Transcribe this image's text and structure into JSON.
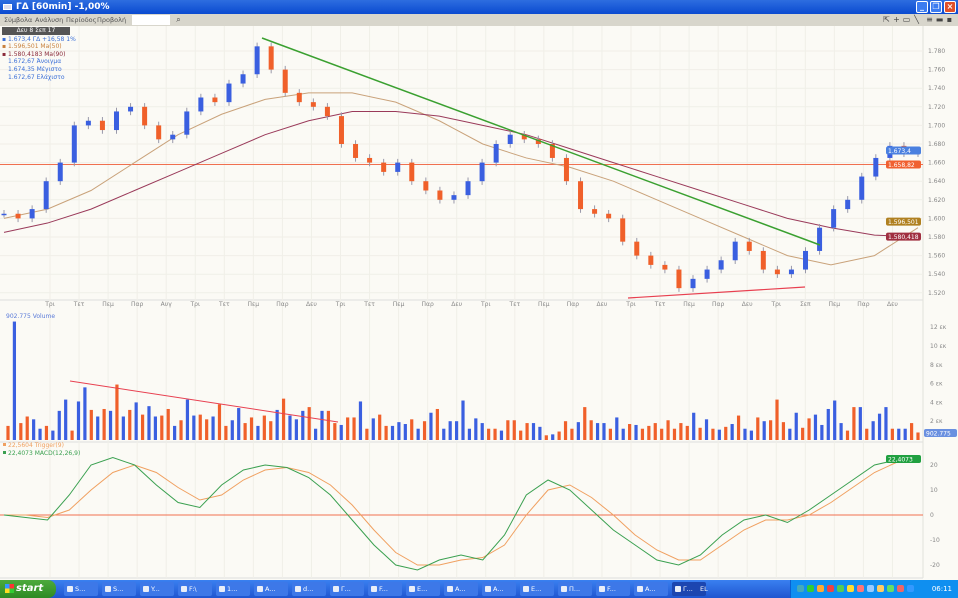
{
  "window": {
    "title": "ΓΔ [60min] -1,00%"
  },
  "menu": {
    "items": [
      "Σύμβολα",
      "Ανάλυση",
      "Περίοδος",
      "Προβολή"
    ],
    "search_value": "",
    "toolbar_icons": [
      "pointer-icon",
      "crosshair-icon",
      "zoom-icon",
      "draw-line-icon",
      "list-icon",
      "layout-icon",
      "save-icon"
    ]
  },
  "legend": {
    "date": "Δευ 8 Σεπ 17",
    "lines": [
      {
        "text": "1.673,4 ΓΔ +16,58 1%",
        "color": "#3a6fd8"
      },
      {
        "text": "1.596,501 Ma(50)",
        "color": "#c8803c"
      },
      {
        "text": "1.580,4183 Ma(90)",
        "color": "#8a2a3a"
      },
      {
        "text": "1.672,67 Άνοιγμα",
        "color": "#3a6fd8"
      },
      {
        "text": "1.674,35 Μέγιστο",
        "color": "#3a6fd8"
      },
      {
        "text": "1.672,67 Ελάχιστο",
        "color": "#3a6fd8"
      }
    ]
  },
  "colors": {
    "up": "#3a5fe0",
    "down": "#f0602a",
    "ma50": "#c9a27a",
    "ma90": "#9a3a5a",
    "trend_green": "#3aa030",
    "trend_red": "#e84050",
    "hline": "#f07050",
    "macd": "#3aa050",
    "trigger": "#f0a060"
  },
  "chart_data": [
    {
      "type": "candlestick",
      "panel": "price",
      "ylim": [
        1.51,
        1.8
      ],
      "yticks": [
        "1.780",
        "1.760",
        "1.740",
        "1.720",
        "1.700",
        "1.680",
        "1.660",
        "1.640",
        "1.620",
        "1.600",
        "1.580",
        "1.560",
        "1.540",
        "1.520"
      ],
      "xticks": [
        "Τρι",
        "Τετ",
        "Πεμ",
        "Παρ",
        "Αυγ",
        "Τρι",
        "Τετ",
        "Πεμ",
        "Παρ",
        "Δευ",
        "Τρι",
        "Τετ",
        "Πεμ",
        "Παρ",
        "Δευ",
        "Τρι",
        "Τετ",
        "Πεμ",
        "Παρ",
        "Δευ",
        "Τρι",
        "Τετ",
        "Πεμ",
        "Παρ",
        "Δευ",
        "Τρι",
        "Σεπ",
        "Πεμ",
        "Παρ",
        "Δευ"
      ],
      "close": [
        1.605,
        1.6,
        1.61,
        1.64,
        1.66,
        1.7,
        1.705,
        1.695,
        1.715,
        1.72,
        1.7,
        1.685,
        1.69,
        1.715,
        1.73,
        1.725,
        1.745,
        1.755,
        1.785,
        1.76,
        1.735,
        1.725,
        1.72,
        1.71,
        1.68,
        1.665,
        1.66,
        1.65,
        1.66,
        1.64,
        1.63,
        1.62,
        1.625,
        1.64,
        1.66,
        1.68,
        1.69,
        1.685,
        1.68,
        1.665,
        1.64,
        1.61,
        1.605,
        1.6,
        1.575,
        1.56,
        1.55,
        1.545,
        1.525,
        1.535,
        1.545,
        1.555,
        1.575,
        1.565,
        1.545,
        1.54,
        1.545,
        1.565,
        1.59,
        1.61,
        1.62,
        1.645,
        1.665,
        1.678,
        1.67,
        1.673
      ],
      "series": [
        {
          "name": "Ma(50)",
          "values": [
            1.6,
            1.61,
            1.63,
            1.66,
            1.69,
            1.712,
            1.728,
            1.735,
            1.735,
            1.725,
            1.705,
            1.68,
            1.665,
            1.655,
            1.64,
            1.62,
            1.6,
            1.58,
            1.56,
            1.55,
            1.56,
            1.59
          ]
        },
        {
          "name": "Ma(90)",
          "values": [
            1.585,
            1.595,
            1.61,
            1.63,
            1.65,
            1.67,
            1.69,
            1.705,
            1.715,
            1.715,
            1.71,
            1.7,
            1.69,
            1.675,
            1.66,
            1.645,
            1.63,
            1.615,
            1.6,
            1.59,
            1.582,
            1.58
          ]
        }
      ],
      "tags": [
        {
          "text": "1.673,4",
          "value": 1.673,
          "color": "#4a80e0"
        },
        {
          "text": "1.658,82",
          "value": 1.658,
          "color": "#f06030"
        },
        {
          "text": "1.596,501",
          "value": 1.5965,
          "color": "#b08020"
        },
        {
          "text": "1.580,418",
          "value": 1.5804,
          "color": "#a03040"
        }
      ],
      "hline": 1.658
    },
    {
      "type": "bar",
      "panel": "volume",
      "title": "902.775 Volume",
      "ylim": [
        0,
        13
      ],
      "yticks": [
        "12 εκ",
        "10 εκ",
        "8 εκ",
        "6 εκ",
        "4 εκ",
        "2 εκ"
      ],
      "tag": "902.775",
      "values": [
        1.5,
        12.6,
        1.8,
        2.5,
        2.2,
        1.2,
        1.5,
        1,
        3.1,
        4.3,
        1,
        4.1,
        5.6,
        3.2,
        2.5,
        3.3,
        3.1,
        5.9,
        2.5,
        3.2,
        4,
        2.7,
        3.6,
        2.5,
        2.6,
        3.3,
        1.5,
        2.1,
        4.3,
        2.6,
        2.7,
        2.2,
        2.5,
        3.8,
        1.5,
        2.1,
        3.4,
        1.8,
        2.4,
        1.5,
        2.6,
        2,
        3.2,
        4.4,
        2.6,
        2.2,
        3.1,
        3.5,
        1.2,
        3.1,
        3.1,
        1.8,
        1.6,
        2.4,
        2.4,
        4.1,
        1.2,
        2.3,
        2.7,
        1.5,
        1.5,
        1.9,
        1.7,
        2.2,
        1.2,
        2,
        2.9,
        3.3,
        1.2,
        2,
        2,
        4.2,
        1.2,
        2.3,
        1.8,
        1.2,
        1.2,
        1,
        2.1,
        2.1,
        1,
        1.8,
        1.8,
        1.4,
        0.5,
        0.6,
        0.9,
        2,
        1.2,
        1.9,
        3.5,
        2.1,
        1.8,
        1.8,
        1.2,
        2.4,
        1.2,
        1.7,
        1.6,
        1.2,
        1.5,
        1.8,
        1.2,
        2.1,
        1.2,
        1.8,
        1.5,
        2.9,
        1.3,
        2.2,
        1.2,
        1.1,
        1.4,
        1.7,
        2.6,
        1.2,
        1,
        2.4,
        2,
        2.1,
        4.3,
        1.9,
        1.2,
        2.9,
        1.3,
        2.3,
        2.7,
        1.6,
        3.3,
        4.2,
        1.8,
        1,
        3.5,
        3.5,
        1.2,
        2,
        2.8,
        3.5,
        1.2,
        1.2,
        1.2,
        1.8,
        0.8
      ],
      "colors": "oboobbobbbobbobobobobobboobobbooboobbooboobobbbobboobooboboobbbobobobbbbbbbooboooobboboooboobbobboboooooooobobobobobbobooobboobbbbboobobbbobboobbbbbo"
    },
    {
      "type": "line",
      "panel": "macd",
      "ylim": [
        -22,
        27
      ],
      "yticks": [
        "20",
        "10",
        "0",
        "-10",
        "-20"
      ],
      "series": [
        {
          "name": "22,5604 Trigger(9)",
          "tag": "",
          "values": [
            0,
            0,
            -1,
            2,
            10,
            17,
            20,
            17,
            11,
            6,
            8,
            14,
            18,
            19,
            17,
            12,
            4,
            -6,
            -15,
            -20,
            -20,
            -18,
            -17,
            -12,
            0,
            10,
            12,
            7,
            0,
            -8,
            -14,
            -18,
            -18,
            -12,
            -6,
            -2,
            -2,
            0,
            5,
            11,
            17,
            21,
            22.6
          ]
        },
        {
          "name": "22,4073 MACD(12,26,9)",
          "tag": "22,4073",
          "values": [
            0,
            -1,
            -2,
            8,
            20,
            23,
            20,
            12,
            5,
            3,
            12,
            18,
            20,
            19,
            15,
            8,
            -2,
            -12,
            -20,
            -22,
            -18,
            -16,
            -18,
            -8,
            8,
            14,
            10,
            2,
            -6,
            -12,
            -18,
            -20,
            -16,
            -8,
            -2,
            0,
            -3,
            2,
            8,
            14,
            20,
            22,
            22.4
          ]
        }
      ]
    }
  ],
  "taskbar": {
    "start": "start",
    "items": [
      "S...",
      "S...",
      "Y...",
      "F:\\",
      "1...",
      "A...",
      "d...",
      "Γ...",
      "F...",
      "E...",
      "A...",
      "A...",
      "E...",
      "Π...",
      "F...",
      "A...",
      "Γ..."
    ],
    "quicklaunch": "EL",
    "clock": "06:11"
  }
}
